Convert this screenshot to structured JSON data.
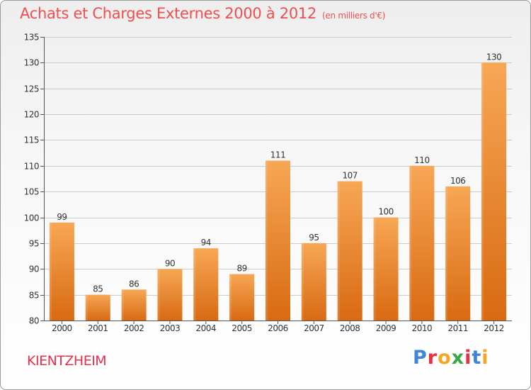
{
  "title": "Achats et Charges Externes 2000 à 2012",
  "unit_note": "(en milliers d'€)",
  "place": "KIENTZHEIM",
  "logo": {
    "text": "Proxiti",
    "letter_colors": [
      "#3d87d9",
      "#e8303f",
      "#f5a623",
      "#3aa84a",
      "#e8303f",
      "#3d87d9",
      "#f5a623"
    ]
  },
  "colors": {
    "bar_top": "#f7a755",
    "bar_bottom": "#d86a12",
    "title": "#f04e4e",
    "place": "#e8304b",
    "grid": "#cccccc"
  },
  "chart_data": {
    "type": "bar",
    "categories": [
      "2000",
      "2001",
      "2002",
      "2003",
      "2004",
      "2005",
      "2006",
      "2007",
      "2008",
      "2009",
      "2010",
      "2011",
      "2012"
    ],
    "values": [
      99,
      85,
      86,
      90,
      94,
      89,
      111,
      95,
      107,
      100,
      110,
      106,
      130
    ],
    "ylim": [
      80,
      135
    ],
    "yticks": [
      80,
      85,
      90,
      95,
      100,
      105,
      110,
      115,
      120,
      125,
      130,
      135
    ],
    "grid": true,
    "legend": "none"
  }
}
